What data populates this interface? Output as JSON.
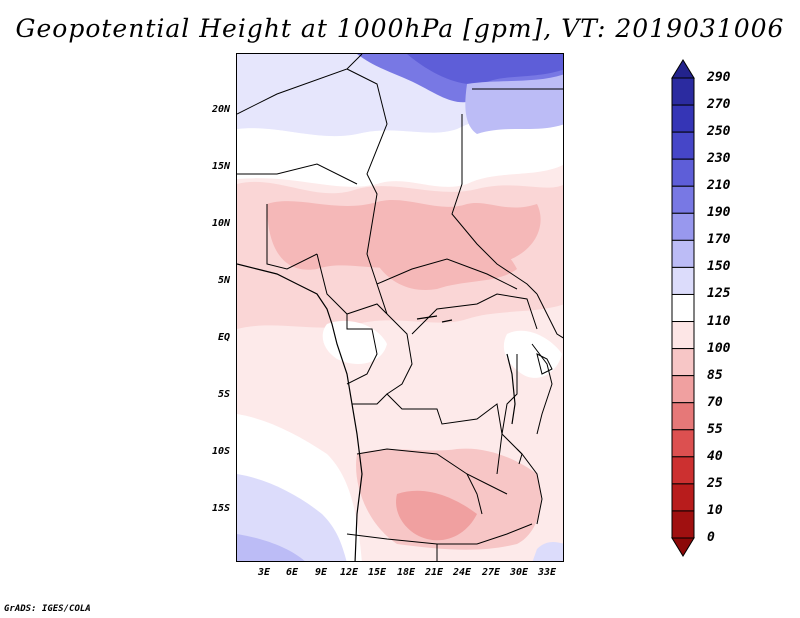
{
  "title": "Geopotential Height at 1000hPa [gpm], VT: 2019031006",
  "credit": "GrADS: IGES/COLA",
  "map": {
    "variable": "Geopotential Height",
    "level": "1000hPa",
    "units": "gpm",
    "valid_time": "2019031006",
    "lat_labels": [
      "20N",
      "15N",
      "10N",
      "5N",
      "EQ",
      "5S",
      "10S",
      "15S"
    ],
    "lon_labels": [
      "3E",
      "6E",
      "9E",
      "12E",
      "15E",
      "18E",
      "21E",
      "24E",
      "27E",
      "30E",
      "33E"
    ]
  },
  "colorbar": {
    "levels": [
      "290",
      "270",
      "250",
      "230",
      "210",
      "190",
      "170",
      "150",
      "125",
      "110",
      "100",
      "85",
      "70",
      "55",
      "40",
      "25",
      "10",
      "0"
    ],
    "colors": [
      "#23238c",
      "#2b2ba0",
      "#3535b6",
      "#4646c8",
      "#5e5ed8",
      "#7878e4",
      "#9898ee",
      "#bcbcf6",
      "#dcdcfb",
      "#ffffff",
      "#fde6e6",
      "#f7c6c6",
      "#f0a0a0",
      "#e67878",
      "#dc5050",
      "#cc3030",
      "#b81c1c",
      "#a01010",
      "#8c0808"
    ]
  }
}
